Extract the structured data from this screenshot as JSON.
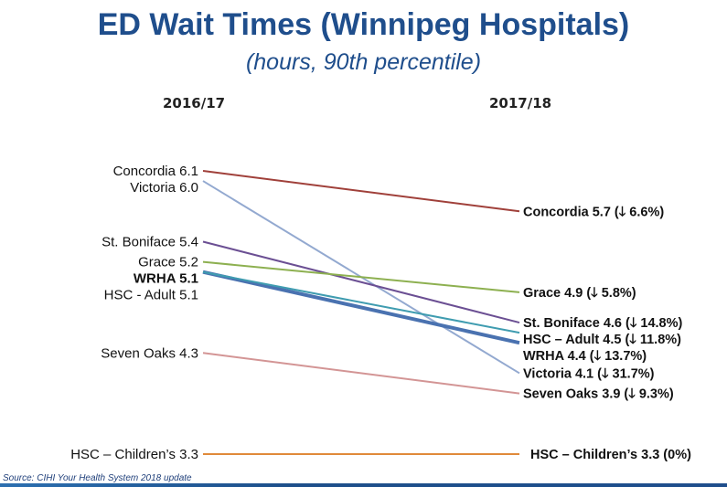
{
  "chart_data": {
    "type": "line",
    "title": "ED Wait Times (Winnipeg Hospitals)",
    "subtitle": "(hours, 90th percentile)",
    "x": [
      "2016/17",
      "2017/18"
    ],
    "ylim": [
      3.3,
      6.1
    ],
    "series": [
      {
        "name": "Concordia",
        "values": [
          6.1,
          5.7
        ],
        "left_label": "Concordia 6.1",
        "right_label": "Concordia 5.7 (🡓 6.6%)",
        "color": "#a0403a",
        "bold": false
      },
      {
        "name": "Victoria",
        "values": [
          6.0,
          4.1
        ],
        "left_label": "Victoria 6.0",
        "right_label": "Victoria 4.1 (🡓 31.7%)",
        "color": "#93a9d0",
        "bold": false
      },
      {
        "name": "St. Boniface",
        "values": [
          5.4,
          4.6
        ],
        "left_label": "St. Boniface 5.4",
        "right_label": "St. Boniface 4.6 (🡓 14.8%)",
        "color": "#6b4f93",
        "bold": false
      },
      {
        "name": "Grace",
        "values": [
          5.2,
          4.9
        ],
        "left_label": "Grace 5.2",
        "right_label": "Grace 4.9 (🡓 5.8%)",
        "color": "#8db050",
        "bold": false
      },
      {
        "name": "WRHA",
        "values": [
          5.1,
          4.4
        ],
        "left_label": "WRHA 5.1",
        "right_label": "WRHA 4.4 (🡓 13.7%)",
        "color": "#4a72b0",
        "bold": true
      },
      {
        "name": "HSC - Adult",
        "values": [
          5.1,
          4.5
        ],
        "left_label": "HSC - Adult 5.1",
        "right_label": "HSC – Adult 4.5 (🡓 11.8%)",
        "color": "#3f9cb0",
        "bold": false
      },
      {
        "name": "Seven Oaks",
        "values": [
          4.3,
          3.9
        ],
        "left_label": "Seven Oaks 4.3",
        "right_label": "Seven Oaks 3.9 (🡓 9.3%)",
        "color": "#d39595",
        "bold": false
      },
      {
        "name": "HSC – Children's",
        "values": [
          3.3,
          3.3
        ],
        "left_label": "HSC – Children’s 3.3",
        "right_label": "HSC – Children’s 3.3 (0%)",
        "color": "#e08a3a",
        "bold": false
      }
    ]
  },
  "source": "Source: CIHI Your Health System 2018 update"
}
